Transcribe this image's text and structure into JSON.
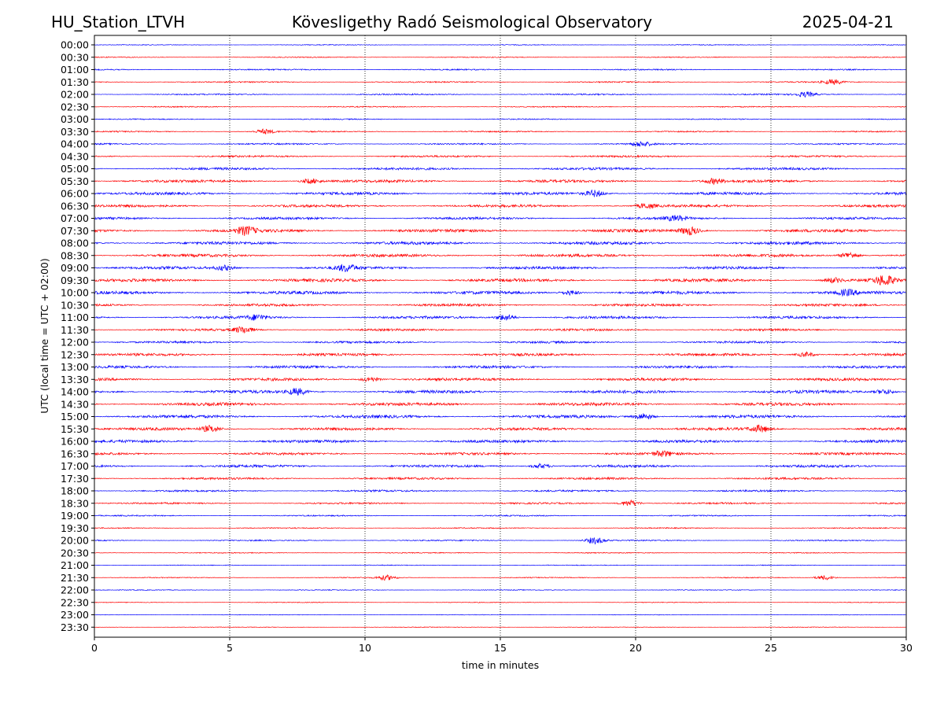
{
  "header": {
    "station": "HU_Station_LTVH",
    "title": "Kövesligethy Radó Seismological Observatory",
    "date": "2025-04-21"
  },
  "chart_data": {
    "type": "line",
    "title": "Kövesligethy Radó Seismological Observatory",
    "xlabel": "time in minutes",
    "ylabel": "UTC (local time = UTC + 02:00)",
    "xlim": [
      0,
      30
    ],
    "xticks": [
      0,
      5,
      10,
      15,
      20,
      25,
      30
    ],
    "grid": "vertical dotted lines at x ticks",
    "colors": {
      "even_rows": "#0000ff",
      "odd_rows": "#ff0000"
    },
    "rows": [
      "00:00",
      "00:30",
      "01:00",
      "01:30",
      "02:00",
      "02:30",
      "03:00",
      "03:30",
      "04:00",
      "04:30",
      "05:00",
      "05:30",
      "06:00",
      "06:30",
      "07:00",
      "07:30",
      "08:00",
      "08:30",
      "09:00",
      "09:30",
      "10:00",
      "10:30",
      "11:00",
      "11:30",
      "12:00",
      "12:30",
      "13:00",
      "13:30",
      "14:00",
      "14:30",
      "15:00",
      "15:30",
      "16:00",
      "16:30",
      "17:00",
      "17:30",
      "18:00",
      "18:30",
      "19:00",
      "19:30",
      "20:00",
      "20:30",
      "21:00",
      "21:30",
      "22:00",
      "22:30",
      "23:00",
      "23:30"
    ],
    "noise_level": [
      0.5,
      0.6,
      0.8,
      0.8,
      0.9,
      0.7,
      0.7,
      0.8,
      1.0,
      1.2,
      1.6,
      1.8,
      1.8,
      1.7,
      1.6,
      2.0,
      2.0,
      1.9,
      1.8,
      2.0,
      2.0,
      1.6,
      1.7,
      1.4,
      1.4,
      1.7,
      1.7,
      1.8,
      2.0,
      2.0,
      2.0,
      1.8,
      1.8,
      1.6,
      1.7,
      1.4,
      1.2,
      1.1,
      0.8,
      0.7,
      0.8,
      0.6,
      0.5,
      0.6,
      0.5,
      0.5,
      0.4,
      0.4
    ],
    "bursts": [
      {
        "row": "01:30",
        "t": 27.3,
        "amp": 3
      },
      {
        "row": "02:00",
        "t": 26.3,
        "amp": 3
      },
      {
        "row": "03:30",
        "t": 6.3,
        "amp": 3
      },
      {
        "row": "04:00",
        "t": 20.2,
        "amp": 3
      },
      {
        "row": "05:30",
        "t": 8.0,
        "amp": 3
      },
      {
        "row": "05:30",
        "t": 22.9,
        "amp": 3
      },
      {
        "row": "06:00",
        "t": 18.5,
        "amp": 4
      },
      {
        "row": "06:30",
        "t": 20.4,
        "amp": 3
      },
      {
        "row": "07:00",
        "t": 21.5,
        "amp": 3
      },
      {
        "row": "07:30",
        "t": 5.6,
        "amp": 5
      },
      {
        "row": "07:30",
        "t": 22.0,
        "amp": 5
      },
      {
        "row": "08:30",
        "t": 27.9,
        "amp": 4
      },
      {
        "row": "09:00",
        "t": 4.8,
        "amp": 3
      },
      {
        "row": "09:00",
        "t": 9.3,
        "amp": 4
      },
      {
        "row": "09:30",
        "t": 27.3,
        "amp": 3
      },
      {
        "row": "09:30",
        "t": 29.2,
        "amp": 6
      },
      {
        "row": "10:00",
        "t": 17.6,
        "amp": 3
      },
      {
        "row": "10:00",
        "t": 27.8,
        "amp": 3
      },
      {
        "row": "11:00",
        "t": 6.0,
        "amp": 3
      },
      {
        "row": "11:00",
        "t": 15.2,
        "amp": 4
      },
      {
        "row": "11:30",
        "t": 5.5,
        "amp": 4
      },
      {
        "row": "12:30",
        "t": 26.3,
        "amp": 3
      },
      {
        "row": "13:30",
        "t": 10.2,
        "amp": 3
      },
      {
        "row": "14:00",
        "t": 7.5,
        "amp": 4
      },
      {
        "row": "14:00",
        "t": 29.2,
        "amp": 3
      },
      {
        "row": "15:00",
        "t": 20.3,
        "amp": 4
      },
      {
        "row": "15:30",
        "t": 4.3,
        "amp": 4
      },
      {
        "row": "15:30",
        "t": 24.6,
        "amp": 4
      },
      {
        "row": "16:30",
        "t": 21.0,
        "amp": 3
      },
      {
        "row": "17:00",
        "t": 16.5,
        "amp": 3
      },
      {
        "row": "18:30",
        "t": 19.8,
        "amp": 4
      },
      {
        "row": "20:00",
        "t": 18.5,
        "amp": 4
      },
      {
        "row": "21:30",
        "t": 10.8,
        "amp": 3
      },
      {
        "row": "21:30",
        "t": 27.0,
        "amp": 3
      }
    ]
  }
}
